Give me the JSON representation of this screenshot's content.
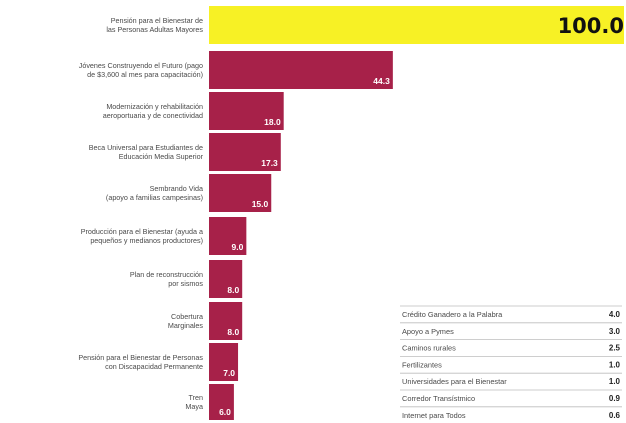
{
  "chart_data": [
    {
      "type": "bar",
      "orientation": "horizontal",
      "categories": [
        [
          "Pensión para el Bienestar de",
          "las Personas Adultas Mayores"
        ],
        [
          "Jóvenes Construyendo el Futuro (pago",
          "de $3,600 al mes para capacitación)"
        ],
        [
          "Modernización y rehabilitación",
          "aeroportuaria y de conectividad"
        ],
        [
          "Beca Universal para Estudiantes de",
          "Educación Media Superior"
        ],
        [
          "Sembrando Vida",
          "(apoyo a familias campesinas)"
        ],
        [
          "Producción para el Bienestar (ayuda a",
          "pequeños y medianos productores)"
        ],
        [
          "Plan de reconstrucción",
          "por sismos"
        ],
        [
          "Cobertura",
          "Marginales"
        ],
        [
          "Pensión para el Bienestar de Personas",
          "con Discapacidad Permanente"
        ],
        [
          "Tren",
          "Maya"
        ]
      ],
      "values": [
        100.0,
        44.3,
        18.0,
        17.3,
        15.0,
        9.0,
        8.0,
        8.0,
        7.0,
        6.0
      ],
      "value_labels": [
        "100.0",
        "44.3",
        "18.0",
        "17.3",
        "15.0",
        "9.0",
        "8.0",
        "8.0",
        "7.0",
        "6.0"
      ],
      "highlight_color": "#f7f125",
      "bar_color": "#a72149",
      "xlim": [
        0,
        100
      ]
    },
    {
      "type": "table",
      "rows": [
        {
          "label": "Crédito Ganadero a la Palabra",
          "value": "4.0"
        },
        {
          "label": "Apoyo a Pymes",
          "value": "3.0"
        },
        {
          "label": "Caminos rurales",
          "value": "2.5"
        },
        {
          "label": "Fertilizantes",
          "value": "1.0"
        },
        {
          "label": "Universidades para el Bienestar",
          "value": "1.0"
        },
        {
          "label": "Corredor Transístmico",
          "value": "0.9"
        },
        {
          "label": "Internet para Todos",
          "value": "0.6"
        }
      ]
    }
  ]
}
